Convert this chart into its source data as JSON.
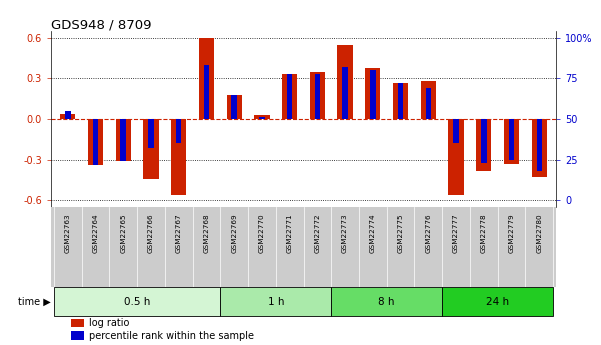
{
  "title": "GDS948 / 8709",
  "samples": [
    "GSM22763",
    "GSM22764",
    "GSM22765",
    "GSM22766",
    "GSM22767",
    "GSM22768",
    "GSM22769",
    "GSM22770",
    "GSM22771",
    "GSM22772",
    "GSM22773",
    "GSM22774",
    "GSM22775",
    "GSM22776",
    "GSM22777",
    "GSM22778",
    "GSM22779",
    "GSM22780"
  ],
  "log_ratio": [
    0.04,
    -0.34,
    -0.31,
    -0.44,
    -0.56,
    0.6,
    0.18,
    0.03,
    0.33,
    0.35,
    0.55,
    0.38,
    0.27,
    0.28,
    -0.56,
    -0.38,
    -0.33,
    -0.43
  ],
  "percentile": [
    55,
    22,
    24,
    32,
    35,
    83,
    65,
    51,
    78,
    78,
    82,
    80,
    72,
    69,
    35,
    23,
    25,
    18
  ],
  "time_groups": [
    {
      "label": "0.5 h",
      "start": 0,
      "end": 6,
      "color": "#d4f5d4"
    },
    {
      "label": "1 h",
      "start": 6,
      "end": 10,
      "color": "#aaeaaa"
    },
    {
      "label": "8 h",
      "start": 10,
      "end": 14,
      "color": "#66dd66"
    },
    {
      "label": "24 h",
      "start": 14,
      "end": 18,
      "color": "#22cc22"
    }
  ],
  "ylim": [
    -0.65,
    0.65
  ],
  "y_ticks_left": [
    -0.6,
    -0.3,
    0.0,
    0.3,
    0.6
  ],
  "y_ticks_right": [
    0,
    25,
    50,
    75,
    100
  ],
  "bar_color": "#cc2200",
  "pct_color": "#0000cc",
  "bg_color": "#ffffff",
  "plot_bg": "#ffffff",
  "grid_color": "#000000",
  "zero_line_color": "#cc2200",
  "bar_width": 0.55,
  "pct_bar_width": 0.2,
  "sample_bg": "#cccccc"
}
